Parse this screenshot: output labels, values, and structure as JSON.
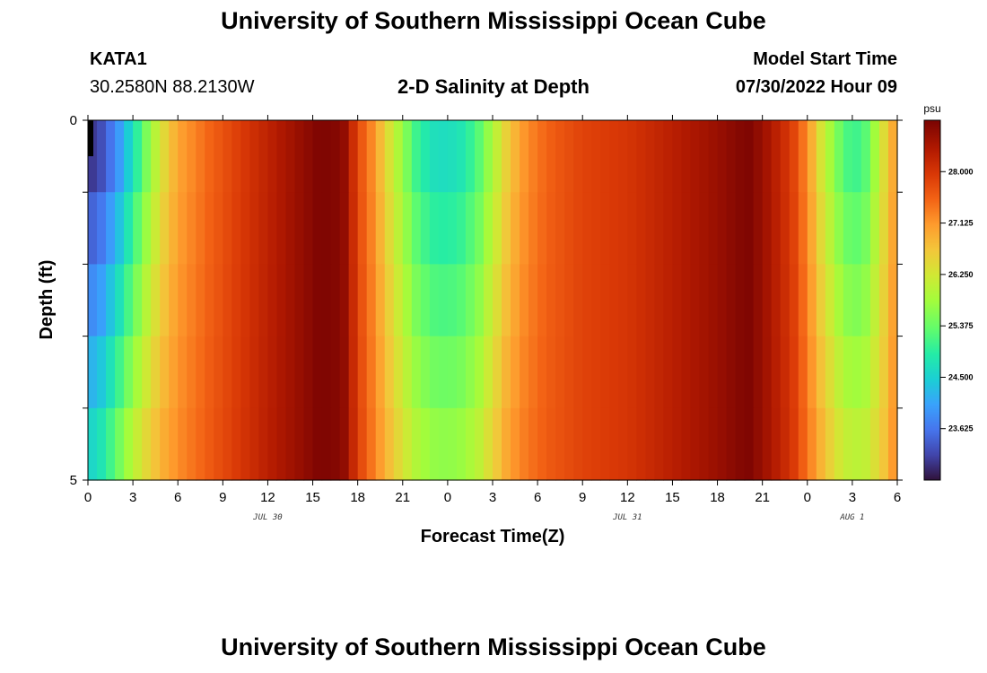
{
  "header": {
    "title": "University of Southern Mississippi Ocean Cube",
    "station": "KATA1",
    "coords": "30.2580N  88.2130W",
    "product": "2-D Salinity at Depth",
    "start_label": "Model Start Time",
    "start_value": "07/30/2022 Hour 09"
  },
  "footer": {
    "title": "University of Southern Mississippi Ocean Cube"
  },
  "chart_data": {
    "type": "heatmap",
    "title": "2-D Salinity at Depth",
    "xlabel": "Forecast Time(Z)",
    "ylabel": "Depth (ft)",
    "x_tick_labels": [
      "0",
      "3",
      "6",
      "9",
      "12",
      "15",
      "18",
      "21",
      "0",
      "3",
      "6",
      "9",
      "12",
      "15",
      "18",
      "21",
      "0",
      "3",
      "6"
    ],
    "x_hours_range": [
      0,
      54
    ],
    "date_labels": [
      {
        "label": "JUL 30",
        "hour": 12
      },
      {
        "label": "JUL 31",
        "hour": 36
      },
      {
        "label": "AUG 1",
        "hour": 51
      }
    ],
    "y_tick_labels": [
      "0",
      "5"
    ],
    "ylim": [
      0,
      5
    ],
    "depth_levels": 5,
    "colorbar": {
      "unit": "psu",
      "range": [
        22.75,
        28.875
      ],
      "tick_labels": [
        "28.000",
        "27.125",
        "26.250",
        "25.375",
        "24.500",
        "23.625"
      ],
      "tick_values": [
        28.0,
        27.125,
        26.25,
        25.375,
        24.5,
        23.625
      ]
    },
    "salinity_profile": {
      "hours": [
        0,
        1,
        2,
        3,
        4,
        5,
        6,
        8,
        10,
        12,
        14,
        15.5,
        17,
        17.5,
        18,
        19,
        20,
        21,
        22,
        23,
        24,
        25,
        26,
        27,
        28,
        29,
        30,
        31,
        33,
        36,
        39,
        42,
        44,
        45,
        47,
        48,
        49,
        50,
        51,
        52,
        53,
        54
      ],
      "surface": [
        23.0,
        23.3,
        23.9,
        24.7,
        25.6,
        26.4,
        27.0,
        27.5,
        27.9,
        28.25,
        28.6,
        28.85,
        28.75,
        28.3,
        27.8,
        27.2,
        26.4,
        25.7,
        25.0,
        24.7,
        24.65,
        24.8,
        25.2,
        25.9,
        26.6,
        27.1,
        27.4,
        27.6,
        27.85,
        28.0,
        28.3,
        28.6,
        28.85,
        28.6,
        27.9,
        27.2,
        26.2,
        25.5,
        25.0,
        25.3,
        26.3,
        27.2
      ],
      "bottom": [
        24.5,
        24.8,
        25.4,
        26.0,
        26.5,
        26.9,
        27.2,
        27.6,
        27.95,
        28.3,
        28.6,
        28.85,
        28.75,
        28.35,
        27.9,
        27.35,
        26.8,
        26.3,
        25.9,
        25.7,
        25.65,
        25.75,
        26.0,
        26.5,
        27.0,
        27.3,
        27.5,
        27.65,
        27.85,
        28.0,
        28.3,
        28.6,
        28.85,
        28.6,
        28.0,
        27.4,
        26.8,
        26.3,
        26.0,
        26.1,
        26.6,
        27.3
      ]
    }
  }
}
